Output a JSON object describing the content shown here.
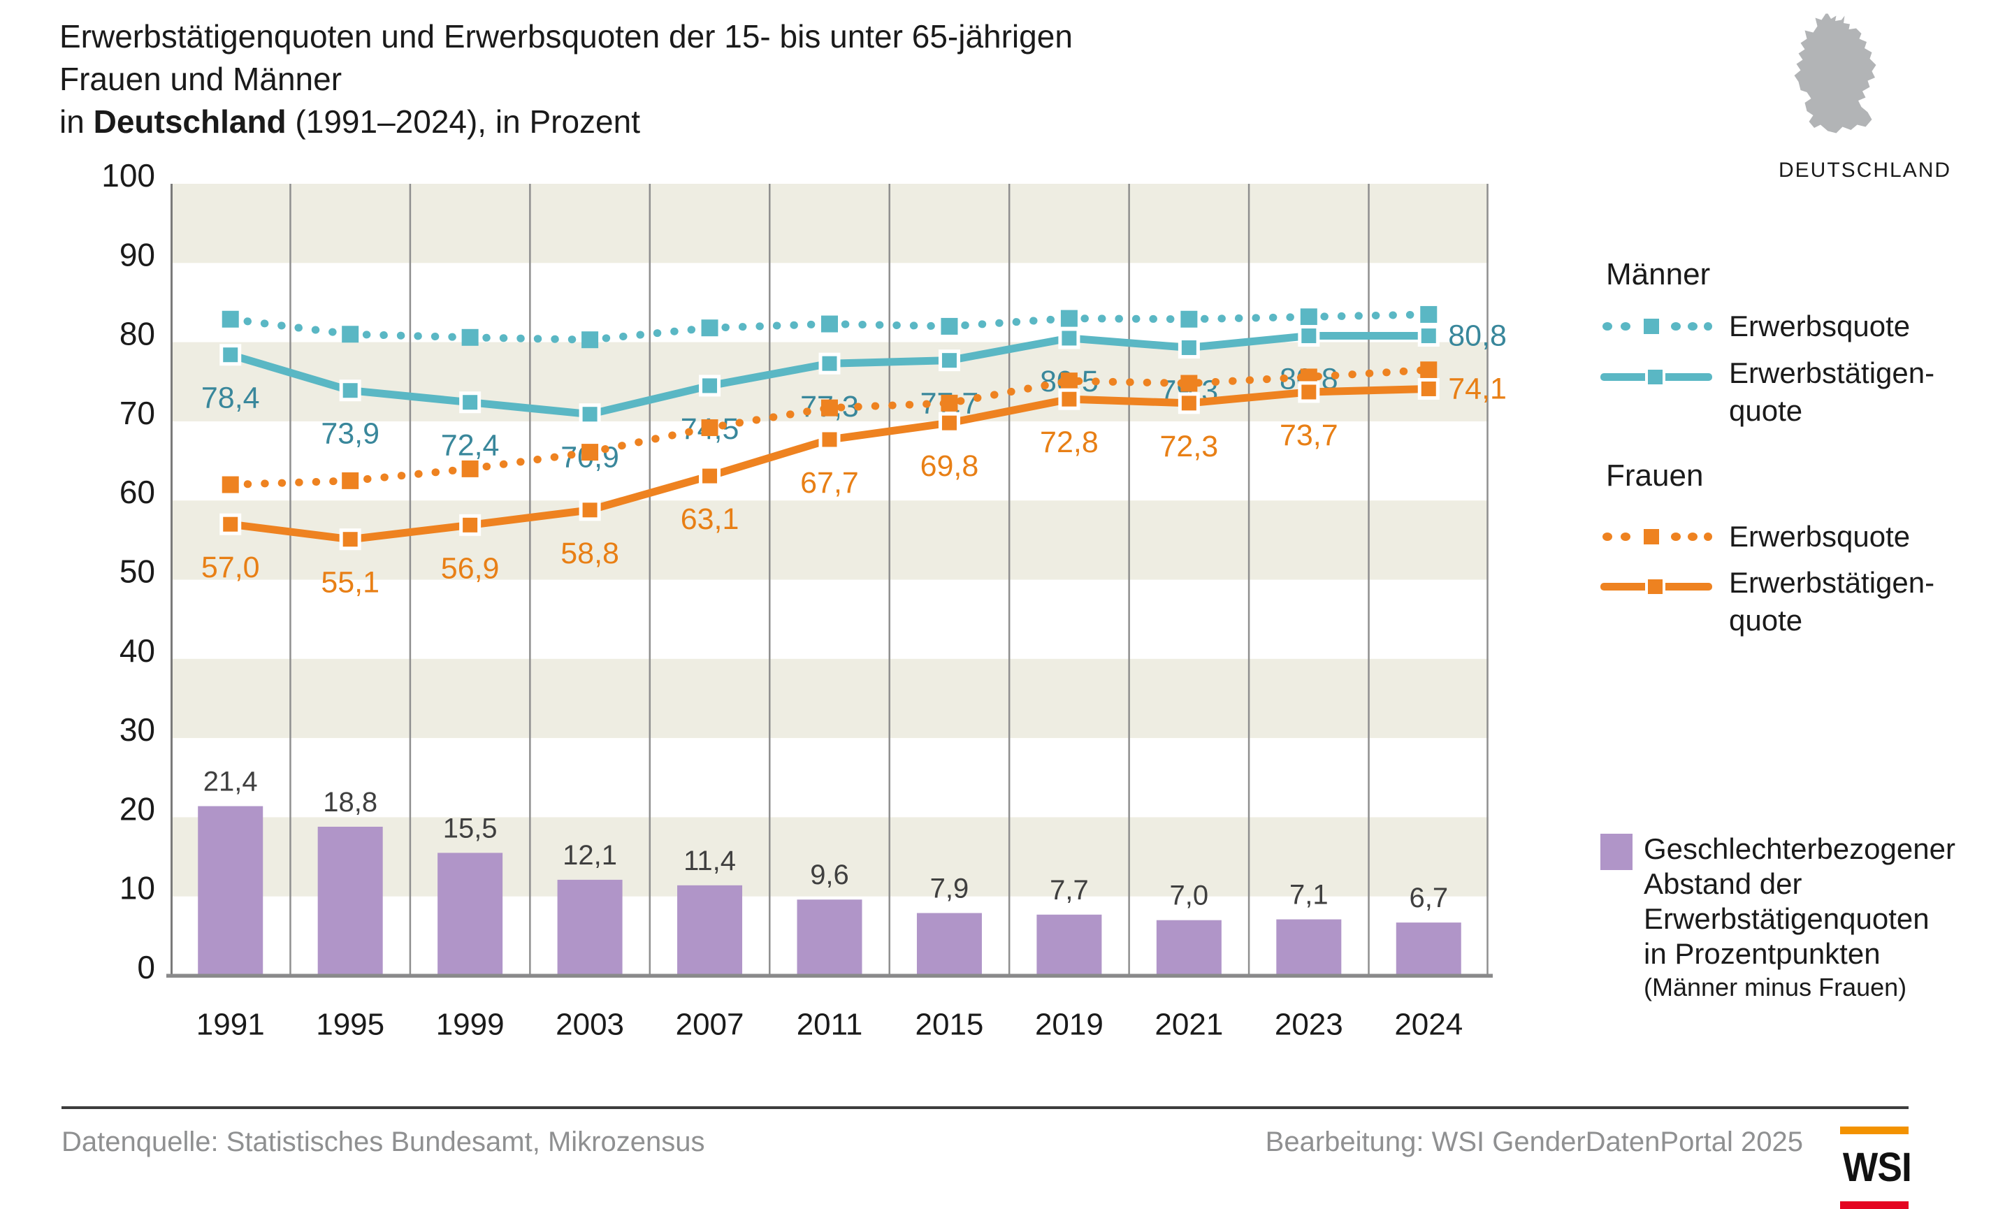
{
  "title": {
    "line1": "Erwerbstätigenquoten und Erwerbsquoten der 15- bis unter 65-jährigen Frauen und Männer",
    "line2_pre": "in ",
    "line2_bold": "Deutschland",
    "line2_post": " (1991–2024), in Prozent"
  },
  "map": {
    "label": "DEUTSCHLAND"
  },
  "legend": {
    "maenner_heading": "Männer",
    "frauen_heading": "Frauen",
    "erwerbsquote_label": "Erwerbsquote",
    "erwerbstaetigenquote_line1": "Erwerbstätigen-",
    "erwerbstaetigenquote_line2": "quote",
    "gap": {
      "lines": [
        "Geschlechterbezogener",
        "Abstand der",
        "Erwerbstätigenquoten",
        "in Prozentpunkten"
      ],
      "note": "(Männer minus Frauen)"
    }
  },
  "footer": {
    "source": "Datenquelle: Statistisches Bundesamt, Mikrozensus",
    "attribution": "Bearbeitung: WSI GenderDatenPortal 2025",
    "logo_text": "WSI"
  },
  "colors": {
    "teal": "#5ab7c4",
    "teal_label": "#39879b",
    "orange": "#ee8220",
    "orange_label": "#e87f15",
    "purple": "#b095c8",
    "band_beige": "#eeede2",
    "grid": "#8f8f8f",
    "axis": "#7a7a7a",
    "baseline": "#8a8a8b",
    "tick_text": "#1a1a1a",
    "bar_label": "#3f3f3f",
    "map_gray": "#b2b4b6",
    "footer_text": "#8f9091",
    "footer_line": "#3d3d3d",
    "logo_orange": "#f39200",
    "logo_red": "#e40521"
  },
  "chart_data": {
    "type": "line+bar",
    "categories": [
      "1991",
      "1995",
      "1999",
      "2003",
      "2007",
      "2011",
      "2015",
      "2019",
      "2021",
      "2023",
      "2024"
    ],
    "ylim": [
      0,
      100
    ],
    "yticks": [
      0,
      10,
      20,
      30,
      40,
      50,
      60,
      70,
      80,
      90,
      100
    ],
    "grid": "vertical-category-boundaries",
    "band_rows": [
      [
        10,
        20
      ],
      [
        30,
        40
      ],
      [
        50,
        60
      ],
      [
        70,
        80
      ],
      [
        90,
        100
      ]
    ],
    "legend_position": "right",
    "decimal_separator": ",",
    "series": [
      {
        "key": "maenner-erwerbsquote",
        "name": "Männer Erwerbsquote",
        "style": "dotted",
        "color_key": "teal",
        "show_labels": false,
        "values": [
          82.9,
          81.0,
          80.6,
          80.3,
          81.8,
          82.3,
          82.0,
          83.0,
          82.9,
          83.2,
          83.5
        ]
      },
      {
        "key": "maenner-erwerbstaetigenquote",
        "name": "Männer Erwerbstätigenquote",
        "style": "solid",
        "color_key": "teal",
        "label_color_key": "teal_label",
        "show_labels": true,
        "values": [
          78.4,
          73.9,
          72.4,
          70.9,
          74.5,
          77.3,
          77.7,
          80.5,
          79.3,
          80.8,
          80.8
        ]
      },
      {
        "key": "frauen-erwerbsquote",
        "name": "Frauen Erwerbsquote",
        "style": "dotted",
        "color_key": "orange",
        "show_labels": false,
        "values": [
          62.0,
          62.5,
          64.0,
          66.1,
          69.2,
          71.7,
          72.3,
          75.1,
          74.8,
          75.6,
          76.5
        ]
      },
      {
        "key": "frauen-erwerbstaetigenquote",
        "name": "Frauen Erwerbstätigenquote",
        "style": "solid",
        "color_key": "orange",
        "label_color_key": "orange_label",
        "show_labels": true,
        "values": [
          57.0,
          55.1,
          56.9,
          58.8,
          63.1,
          67.7,
          69.8,
          72.8,
          72.3,
          73.7,
          74.1
        ]
      }
    ],
    "bars": {
      "key": "gender-gap-bars",
      "name": "Geschlechterbezogener Abstand der Erwerbstätigenquoten in Prozentpunkten (Männer minus Frauen)",
      "color_key": "purple",
      "values": [
        21.4,
        18.8,
        15.5,
        12.1,
        11.4,
        9.6,
        7.9,
        7.7,
        7.0,
        7.1,
        6.7
      ]
    }
  }
}
